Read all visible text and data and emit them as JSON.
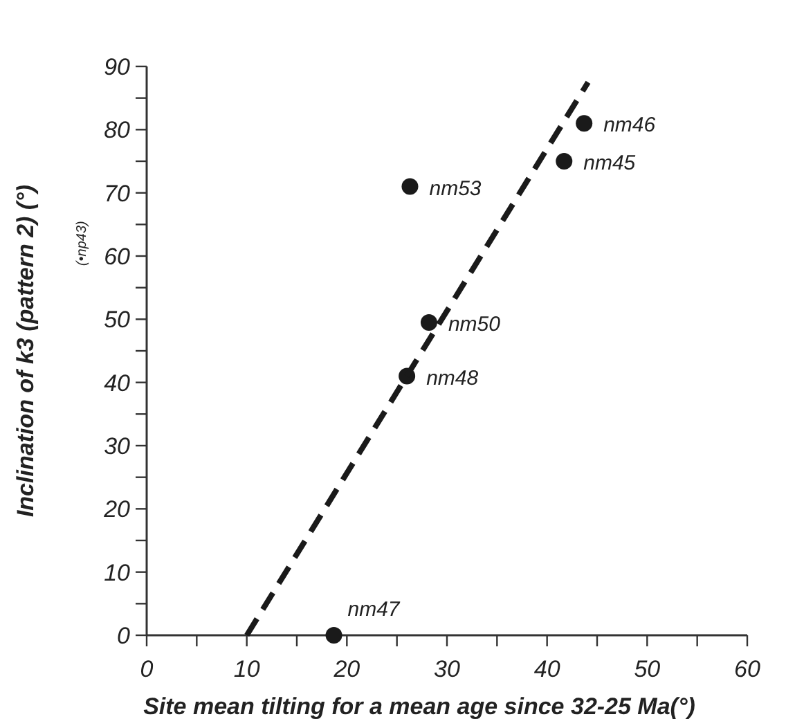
{
  "chart_data": {
    "type": "scatter",
    "xlabel": "Site mean tilting for a mean age since 32-25 Ma(°)",
    "ylabel": "Inclination of k3 (pattern 2) (°)",
    "xlim": [
      0,
      60
    ],
    "ylim": [
      0,
      90
    ],
    "xticks": [
      0,
      {
        "value": 5,
        "label": null
      },
      10,
      {
        "value": 15,
        "label": null
      },
      20,
      {
        "value": 25,
        "label": null
      },
      30,
      {
        "value": 35,
        "label": null
      },
      40,
      {
        "value": 45,
        "label": null
      },
      50,
      {
        "value": 55,
        "label": null
      },
      60
    ],
    "yticks": [
      0,
      {
        "value": 5,
        "label": null
      },
      10,
      {
        "value": 15,
        "label": null
      },
      20,
      {
        "value": 25,
        "label": null
      },
      30,
      {
        "value": 35,
        "label": null
      },
      40,
      {
        "value": 45,
        "label": null
      },
      50,
      {
        "value": 55,
        "label": null
      },
      60,
      {
        "value": 65,
        "label": null
      },
      70,
      {
        "value": 75,
        "label": null
      },
      80,
      {
        "value": 85,
        "label": null
      },
      90
    ],
    "marker": "circle",
    "grid": false,
    "series": [
      {
        "color": "#1a1a1a",
        "x": [
          18.7,
          26.0,
          28.2,
          26.3,
          41.7,
          43.7
        ],
        "values": [
          0,
          41,
          49.5,
          71,
          75,
          81
        ]
      },
      {
        "type": "line",
        "color": "#1a1a1a",
        "line_style": "dashed",
        "marker": "none",
        "x": [
          10,
          44.1
        ],
        "values": [
          0,
          87.5
        ]
      }
    ],
    "annotations": [
      {
        "text": "nm47",
        "x": 18.7,
        "y": 0
      },
      {
        "text": "nm48",
        "x": 26.0,
        "y": 41
      },
      {
        "text": "nm50",
        "x": 28.2,
        "y": 49.5
      },
      {
        "text": "nm53",
        "x": 26.3,
        "y": 71
      },
      {
        "text": "nm45",
        "x": 41.7,
        "y": 75
      },
      {
        "text": "nm46",
        "x": 43.7,
        "y": 81
      },
      "(•np43)"
    ]
  }
}
